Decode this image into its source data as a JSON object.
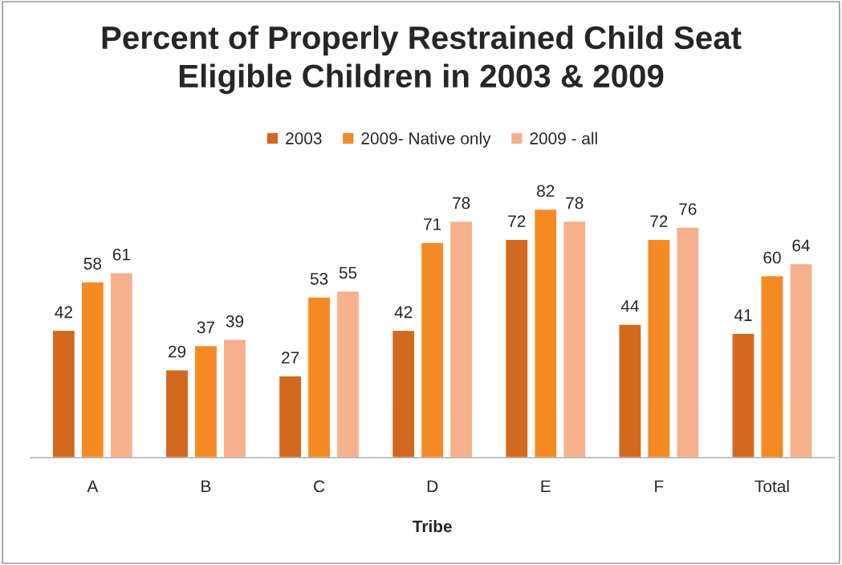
{
  "chart_data": {
    "type": "bar",
    "title": "Percent of Properly Restrained Child Seat\nEligible Children in 2003 & 2009",
    "xlabel": "Tribe",
    "categories": [
      "A",
      "B",
      "C",
      "D",
      "E",
      "F",
      "Total"
    ],
    "series": [
      {
        "name": "2003",
        "color": "#d2691e",
        "values": [
          42,
          29,
          27,
          42,
          72,
          44,
          41
        ]
      },
      {
        "name": "2009- Native only",
        "color": "#f58a25",
        "values": [
          58,
          37,
          53,
          71,
          82,
          72,
          60
        ]
      },
      {
        "name": "2009 - all",
        "color": "#f7b08c",
        "values": [
          61,
          39,
          55,
          78,
          78,
          76,
          64
        ]
      }
    ],
    "data_labels": true,
    "legend": "top",
    "grid": false,
    "tick_labels": "x"
  }
}
